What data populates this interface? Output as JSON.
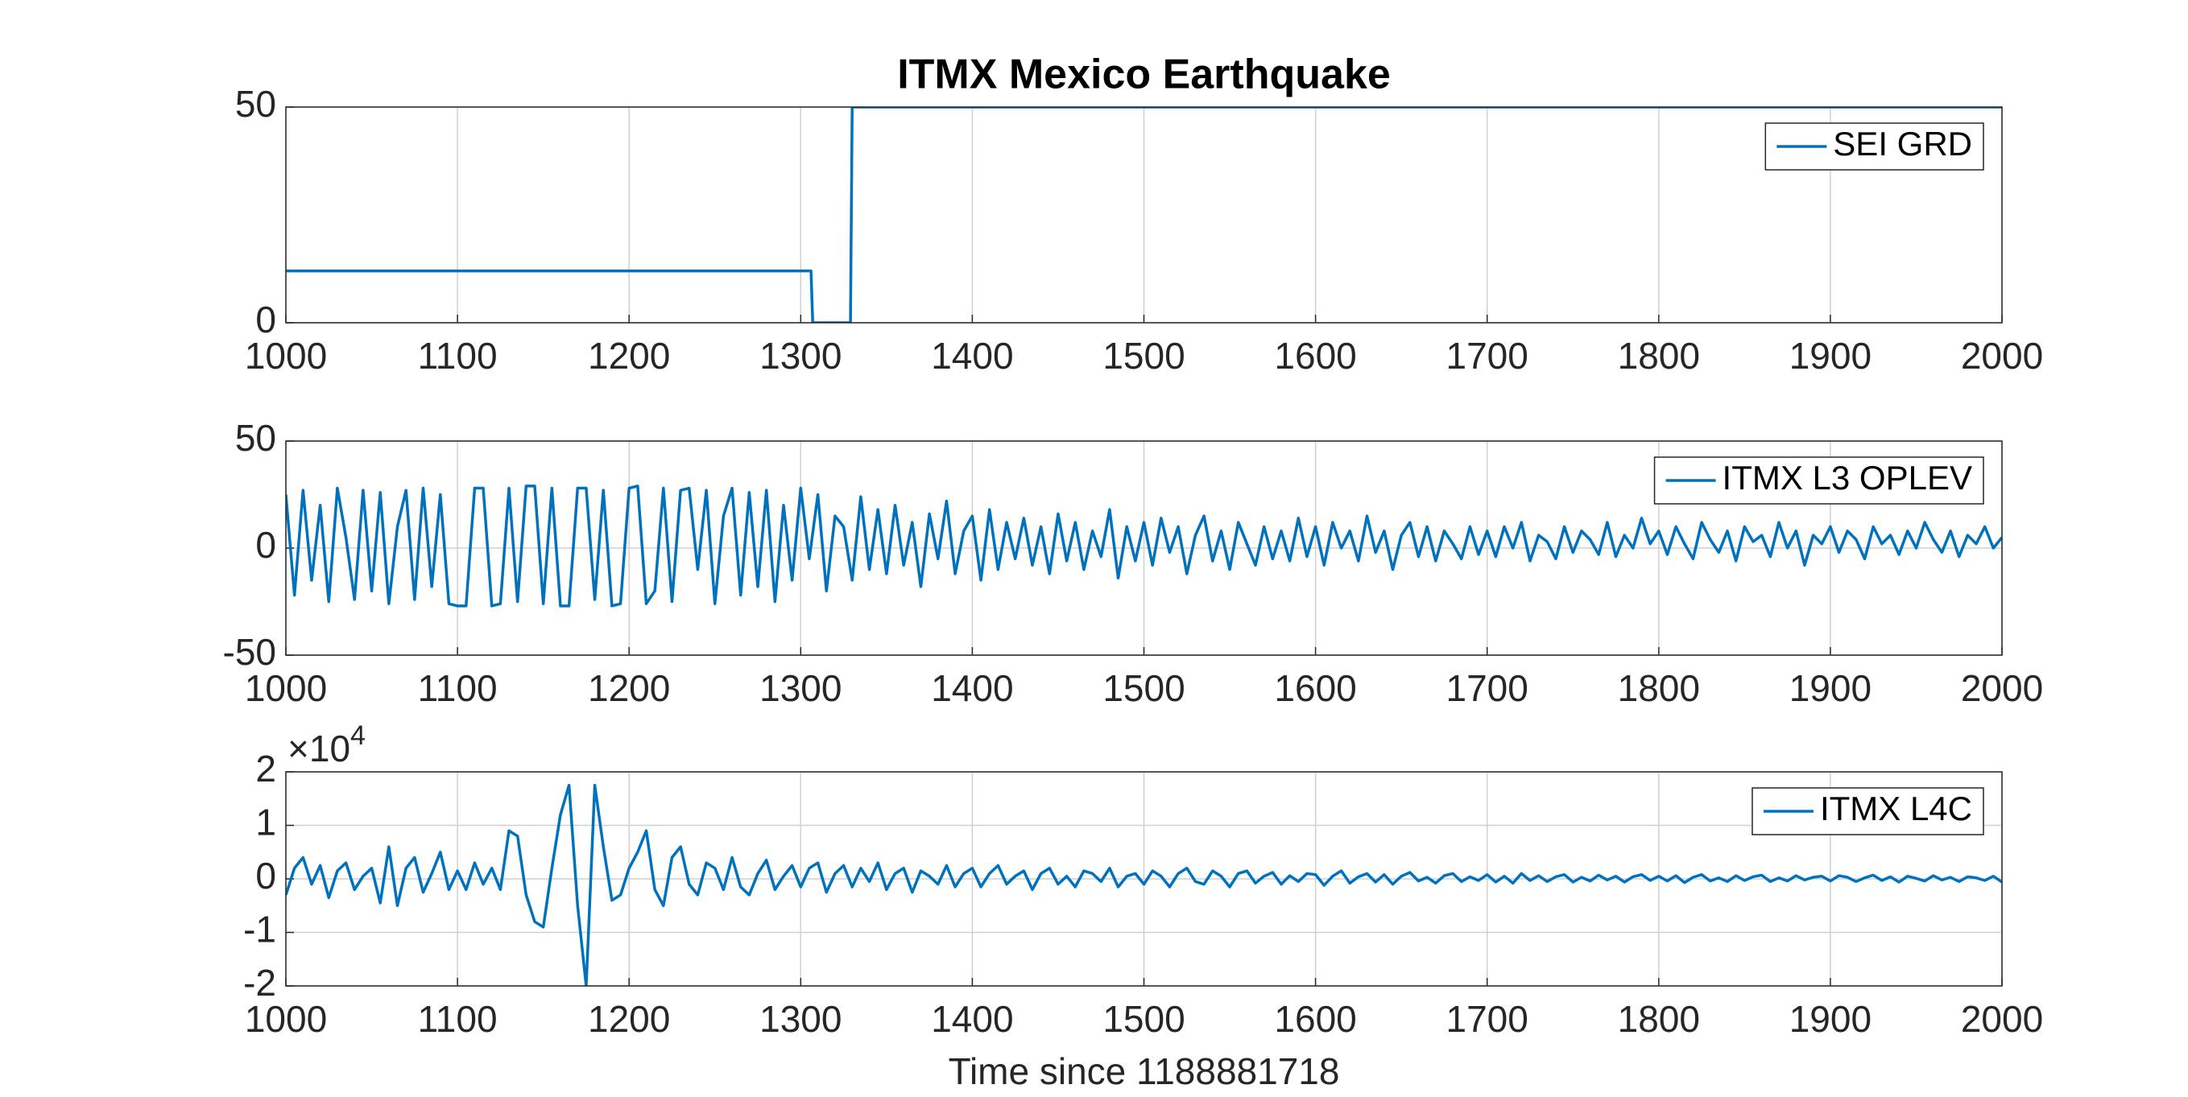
{
  "chart_data": [
    {
      "type": "line",
      "title": "ITMX Mexico Earthquake",
      "xlim": [
        1000,
        2000
      ],
      "xticks": [
        1000,
        1100,
        1200,
        1300,
        1400,
        1500,
        1600,
        1700,
        1800,
        1900,
        2000
      ],
      "ylim": [
        0,
        50
      ],
      "yticks": [
        0,
        50
      ],
      "grid": true,
      "legend": "northeast",
      "series": [
        {
          "name": "SEI GRD",
          "color": "#0072bd",
          "x": [
            1000,
            1306,
            1307,
            1329,
            1330,
            2000
          ],
          "values": [
            12,
            12,
            0,
            0,
            50,
            50
          ]
        }
      ]
    },
    {
      "type": "line",
      "xlim": [
        1000,
        2000
      ],
      "xticks": [
        1000,
        1100,
        1200,
        1300,
        1400,
        1500,
        1600,
        1700,
        1800,
        1900,
        2000
      ],
      "ylim": [
        -50,
        50
      ],
      "yticks": [
        -50,
        0,
        50
      ],
      "grid": true,
      "legend": "northeast",
      "series": [
        {
          "name": "ITMX L3 OPLEV",
          "color": "#0072bd",
          "x": [
            1000,
            1005,
            1010,
            1015,
            1020,
            1025,
            1030,
            1035,
            1040,
            1045,
            1050,
            1055,
            1060,
            1065,
            1070,
            1075,
            1080,
            1085,
            1090,
            1095,
            1100,
            1105,
            1110,
            1115,
            1120,
            1125,
            1130,
            1135,
            1140,
            1145,
            1150,
            1155,
            1160,
            1165,
            1170,
            1175,
            1180,
            1185,
            1190,
            1195,
            1200,
            1205,
            1210,
            1215,
            1220,
            1225,
            1230,
            1235,
            1240,
            1245,
            1250,
            1255,
            1260,
            1265,
            1270,
            1275,
            1280,
            1285,
            1290,
            1295,
            1300,
            1305,
            1310,
            1315,
            1320,
            1325,
            1330,
            1335,
            1340,
            1345,
            1350,
            1355,
            1360,
            1365,
            1370,
            1375,
            1380,
            1385,
            1390,
            1395,
            1400,
            1405,
            1410,
            1415,
            1420,
            1425,
            1430,
            1435,
            1440,
            1445,
            1450,
            1455,
            1460,
            1465,
            1470,
            1475,
            1480,
            1485,
            1490,
            1495,
            1500,
            1505,
            1510,
            1515,
            1520,
            1525,
            1530,
            1535,
            1540,
            1545,
            1550,
            1555,
            1560,
            1565,
            1570,
            1575,
            1580,
            1585,
            1590,
            1595,
            1600,
            1605,
            1610,
            1615,
            1620,
            1625,
            1630,
            1635,
            1640,
            1645,
            1650,
            1655,
            1660,
            1665,
            1670,
            1675,
            1680,
            1685,
            1690,
            1695,
            1700,
            1705,
            1710,
            1715,
            1720,
            1725,
            1730,
            1735,
            1740,
            1745,
            1750,
            1755,
            1760,
            1765,
            1770,
            1775,
            1780,
            1785,
            1790,
            1795,
            1800,
            1805,
            1810,
            1815,
            1820,
            1825,
            1830,
            1835,
            1840,
            1845,
            1850,
            1855,
            1860,
            1865,
            1870,
            1875,
            1880,
            1885,
            1890,
            1895,
            1900,
            1905,
            1910,
            1915,
            1920,
            1925,
            1930,
            1935,
            1940,
            1945,
            1950,
            1955,
            1960,
            1965,
            1970,
            1975,
            1980,
            1985,
            1990,
            1995,
            2000
          ],
          "values": [
            25,
            -22,
            27,
            -15,
            20,
            -25,
            28,
            5,
            -24,
            27,
            -20,
            26,
            -26,
            10,
            27,
            -24,
            28,
            -18,
            25,
            -26,
            -27,
            -27,
            28,
            28,
            -27,
            -26,
            28,
            -25,
            29,
            29,
            -26,
            28,
            -27,
            -27,
            28,
            28,
            -24,
            27,
            -27,
            -26,
            28,
            29,
            -26,
            -20,
            28,
            -25,
            27,
            28,
            -10,
            27,
            -26,
            15,
            28,
            -22,
            26,
            -18,
            27,
            -25,
            20,
            -15,
            28,
            -5,
            25,
            -20,
            15,
            10,
            -15,
            24,
            -10,
            18,
            -12,
            20,
            -8,
            12,
            -18,
            16,
            -5,
            22,
            -12,
            8,
            15,
            -15,
            18,
            -10,
            12,
            -5,
            14,
            -8,
            10,
            -12,
            16,
            -6,
            12,
            -10,
            8,
            -4,
            18,
            -14,
            10,
            -6,
            12,
            -8,
            14,
            -2,
            10,
            -12,
            6,
            15,
            -6,
            8,
            -10,
            12,
            2,
            -8,
            10,
            -5,
            8,
            -6,
            14,
            -4,
            10,
            -8,
            12,
            0,
            8,
            -6,
            15,
            -2,
            8,
            -10,
            6,
            12,
            -4,
            10,
            -6,
            8,
            2,
            -5,
            10,
            -3,
            8,
            -4,
            10,
            0,
            12,
            -6,
            6,
            3,
            -5,
            10,
            -2,
            8,
            4,
            -3,
            12,
            -4,
            6,
            0,
            14,
            2,
            8,
            -3,
            10,
            2,
            -5,
            12,
            4,
            -2,
            8,
            -6,
            10,
            3,
            6,
            -4,
            12,
            0,
            8,
            -8,
            6,
            2,
            10,
            -2,
            8,
            4,
            -5,
            10,
            2,
            6,
            -3,
            8,
            0,
            12,
            4,
            -2,
            8,
            -4,
            6,
            2,
            10,
            0,
            5
          ]
        }
      ]
    },
    {
      "type": "line",
      "xlabel": "Time since 1188881718",
      "y_multiplier": "×10",
      "y_multiplier_exponent": "4",
      "xlim": [
        1000,
        2000
      ],
      "xticks": [
        1000,
        1100,
        1200,
        1300,
        1400,
        1500,
        1600,
        1700,
        1800,
        1900,
        2000
      ],
      "ylim": [
        -20000,
        20000
      ],
      "yticks": [
        {
          "value": -20000,
          "label": "-2"
        },
        {
          "value": -10000,
          "label": "-1"
        },
        {
          "value": 0,
          "label": "0"
        },
        {
          "value": 10000,
          "label": "1"
        },
        {
          "value": 20000,
          "label": "2"
        }
      ],
      "grid": true,
      "legend": "northeast",
      "series": [
        {
          "name": "ITMX L4C",
          "color": "#0072bd",
          "x": [
            1000,
            1005,
            1010,
            1015,
            1020,
            1025,
            1030,
            1035,
            1040,
            1045,
            1050,
            1055,
            1060,
            1065,
            1070,
            1075,
            1080,
            1085,
            1090,
            1095,
            1100,
            1105,
            1110,
            1115,
            1120,
            1125,
            1130,
            1135,
            1140,
            1145,
            1150,
            1155,
            1160,
            1165,
            1170,
            1175,
            1180,
            1185,
            1190,
            1195,
            1200,
            1205,
            1210,
            1215,
            1220,
            1225,
            1230,
            1235,
            1240,
            1245,
            1250,
            1255,
            1260,
            1265,
            1270,
            1275,
            1280,
            1285,
            1290,
            1295,
            1300,
            1305,
            1310,
            1315,
            1320,
            1325,
            1330,
            1335,
            1340,
            1345,
            1350,
            1355,
            1360,
            1365,
            1370,
            1375,
            1380,
            1385,
            1390,
            1395,
            1400,
            1405,
            1410,
            1415,
            1420,
            1425,
            1430,
            1435,
            1440,
            1445,
            1450,
            1455,
            1460,
            1465,
            1470,
            1475,
            1480,
            1485,
            1490,
            1495,
            1500,
            1505,
            1510,
            1515,
            1520,
            1525,
            1530,
            1535,
            1540,
            1545,
            1550,
            1555,
            1560,
            1565,
            1570,
            1575,
            1580,
            1585,
            1590,
            1595,
            1600,
            1605,
            1610,
            1615,
            1620,
            1625,
            1630,
            1635,
            1640,
            1645,
            1650,
            1655,
            1660,
            1665,
            1670,
            1675,
            1680,
            1685,
            1690,
            1695,
            1700,
            1705,
            1710,
            1715,
            1720,
            1725,
            1730,
            1735,
            1740,
            1745,
            1750,
            1755,
            1760,
            1765,
            1770,
            1775,
            1780,
            1785,
            1790,
            1795,
            1800,
            1805,
            1810,
            1815,
            1820,
            1825,
            1830,
            1835,
            1840,
            1845,
            1850,
            1855,
            1860,
            1865,
            1870,
            1875,
            1880,
            1885,
            1890,
            1895,
            1900,
            1905,
            1910,
            1915,
            1920,
            1925,
            1930,
            1935,
            1940,
            1945,
            1950,
            1955,
            1960,
            1965,
            1970,
            1975,
            1980,
            1985,
            1990,
            1995,
            2000
          ],
          "values": [
            -3000,
            2000,
            4000,
            -1000,
            2500,
            -3500,
            1500,
            3000,
            -2000,
            500,
            2000,
            -4500,
            6000,
            -5000,
            2000,
            4000,
            -2500,
            1000,
            5000,
            -2000,
            1500,
            -2000,
            3000,
            -1000,
            2000,
            -2000,
            9000,
            8000,
            -3000,
            -8000,
            -9000,
            2000,
            12000,
            17500,
            -5000,
            -20000,
            17500,
            6000,
            -4000,
            -3000,
            2000,
            5000,
            9000,
            -2000,
            -5000,
            4000,
            6000,
            -1000,
            -3000,
            3000,
            2000,
            -2000,
            4000,
            -1500,
            -3000,
            1000,
            3500,
            -2000,
            500,
            2500,
            -1500,
            2000,
            3000,
            -2500,
            1000,
            2500,
            -1500,
            2000,
            -500,
            3000,
            -2000,
            1000,
            2000,
            -2500,
            1500,
            500,
            -1000,
            2500,
            -1500,
            1000,
            2000,
            -1500,
            1000,
            2500,
            -1000,
            500,
            1500,
            -2000,
            1000,
            2000,
            -1000,
            500,
            -1500,
            1500,
            1000,
            -500,
            2000,
            -1500,
            500,
            1000,
            -1000,
            1500,
            500,
            -1500,
            1000,
            2000,
            -500,
            -1000,
            1500,
            500,
            -1500,
            1000,
            1500,
            -800,
            500,
            1200,
            -1000,
            600,
            -500,
            1000,
            800,
            -1200,
            500,
            1500,
            -800,
            400,
            1000,
            -600,
            800,
            -1000,
            500,
            1200,
            -400,
            300,
            -800,
            600,
            1000,
            -500,
            400,
            -300,
            800,
            -600,
            500,
            -800,
            1000,
            -300,
            600,
            -500,
            400,
            800,
            -600,
            300,
            -400,
            700,
            -200,
            500,
            -600,
            400,
            800,
            -300,
            500,
            -400,
            600,
            -700,
            300,
            800,
            -400,
            200,
            -500,
            600,
            -300,
            400,
            700,
            -500,
            200,
            -400,
            600,
            -200,
            300,
            500,
            -400,
            600,
            300,
            -500,
            200,
            700,
            -300,
            400,
            -600,
            500,
            100,
            -400,
            600,
            -200,
            300,
            -500,
            400,
            200,
            -300,
            500,
            -600
          ]
        }
      ]
    }
  ]
}
